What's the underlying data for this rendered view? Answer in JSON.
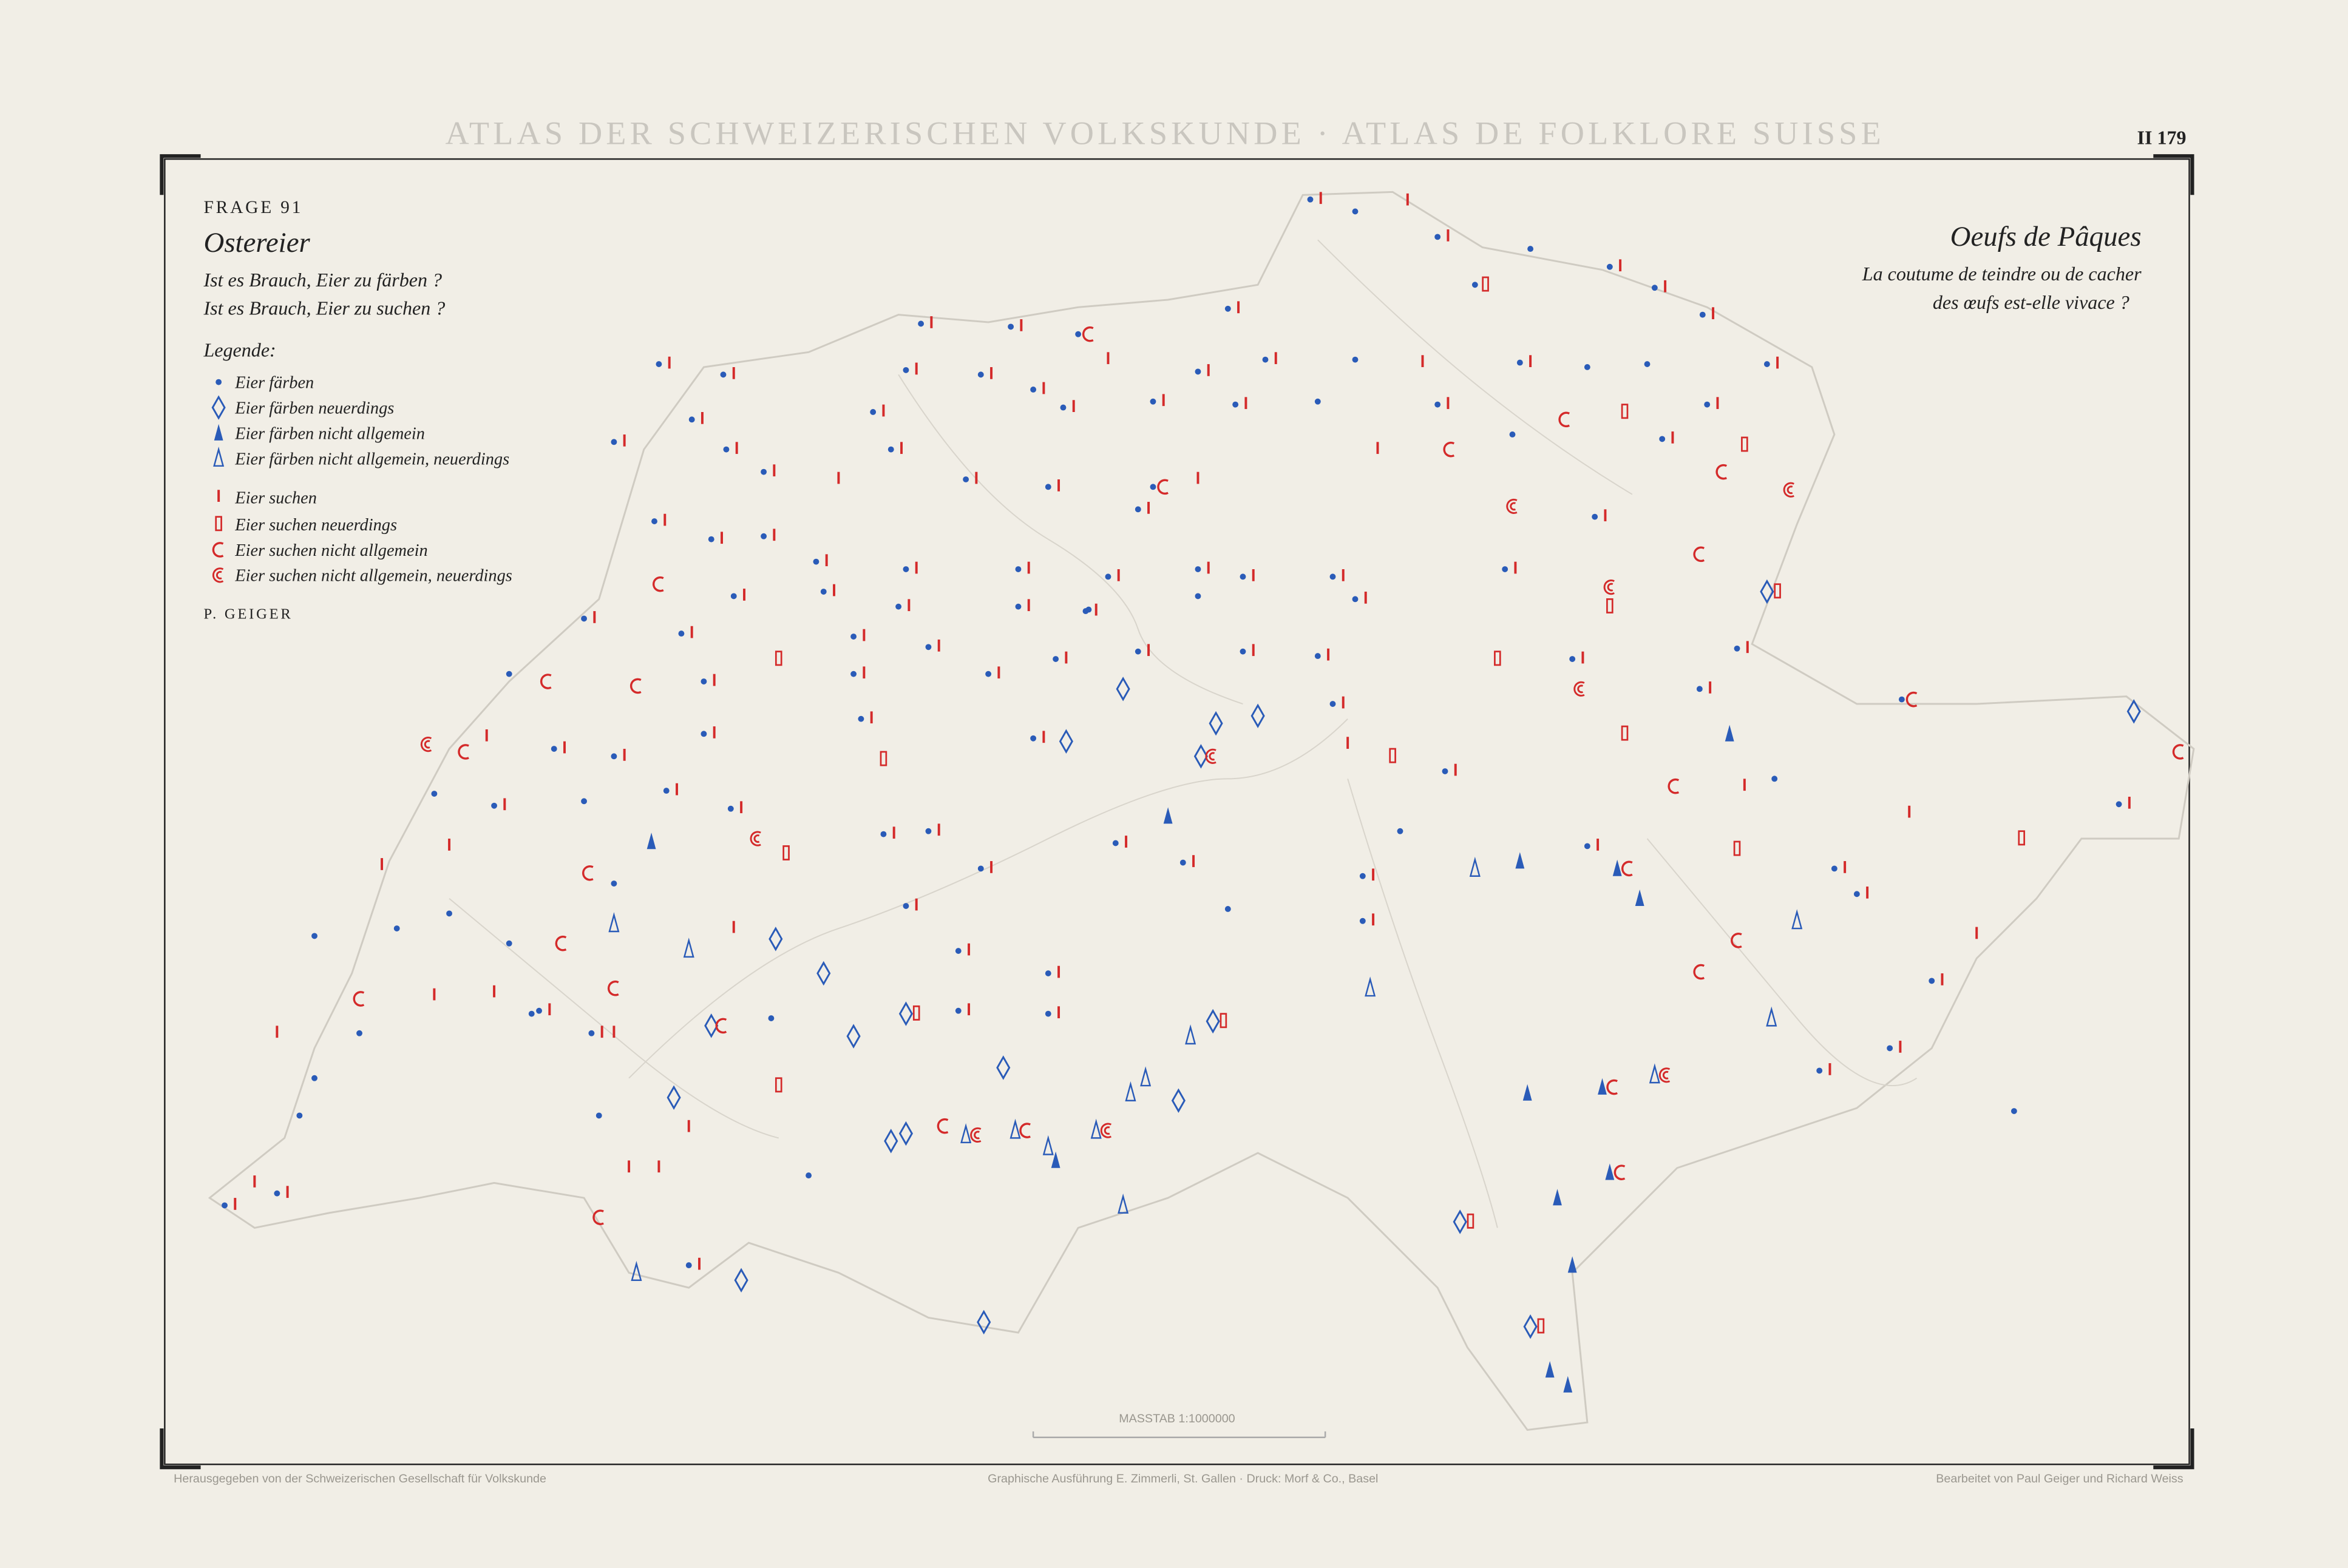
{
  "header": {
    "title": "ATLAS DER SCHWEIZERISCHEN VOLKSKUNDE · ATLAS DE FOLKLORE SUISSE",
    "plate": "II 179"
  },
  "question": {
    "number": "FRAGE 91",
    "title_de": "Ostereier",
    "lines_de": [
      "Ist es Brauch, Eier zu färben ?",
      "Ist es Brauch, Eier zu suchen ?"
    ],
    "title_fr": "Oeufs de Pâques",
    "lines_fr": [
      "La coutume de teindre ou de cacher",
      "des œufs est-elle vivace ?"
    ]
  },
  "legend": {
    "title": "Legende:",
    "items": [
      "Eier färben",
      "Eier färben neuerdings",
      "Eier färben nicht allgemein",
      "Eier färben nicht allgemein, neuerdings",
      "Eier suchen",
      "Eier suchen neuerdings",
      "Eier suchen nicht allgemein",
      "Eier suchen nicht allgemein, neuerdings"
    ]
  },
  "author": "P. GEIGER",
  "scale": "MASSTAB 1:1000000",
  "footer": {
    "publisher": "Herausgegeben von der Schweizerischen Gesellschaft für Volkskunde",
    "printer": "Graphische Ausführung E. Zimmerli, St. Gallen · Druck: Morf & Co., Basel",
    "editors": "Bearbeitet von Paul Geiger und Richard Weiss"
  }
}
